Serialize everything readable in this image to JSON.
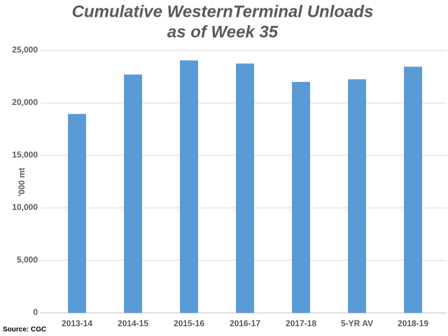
{
  "chart_data": {
    "type": "bar",
    "title": [
      "Cumulative WesternTerminal Unloads",
      "as of Week 35"
    ],
    "y_label": "'000 mt",
    "source": "Source: CGC",
    "categories": [
      "2013-14",
      "2014-15",
      "2015-16",
      "2016-17",
      "2017-18",
      "5-YR AV",
      "2018-19"
    ],
    "values": [
      18950,
      22700,
      24050,
      23750,
      22000,
      22250,
      23450
    ],
    "color": "#5b9bd5",
    "ylim": [
      0,
      25000
    ],
    "yticks": [
      0,
      {
        "value": 5000,
        "label": "5,000"
      },
      {
        "value": 10000,
        "label": "10,000"
      },
      {
        "value": 15000,
        "label": "15,000"
      },
      {
        "value": 20000,
        "label": "20,000"
      },
      {
        "value": 25000,
        "label": "25,000"
      }
    ],
    "grid": true
  }
}
